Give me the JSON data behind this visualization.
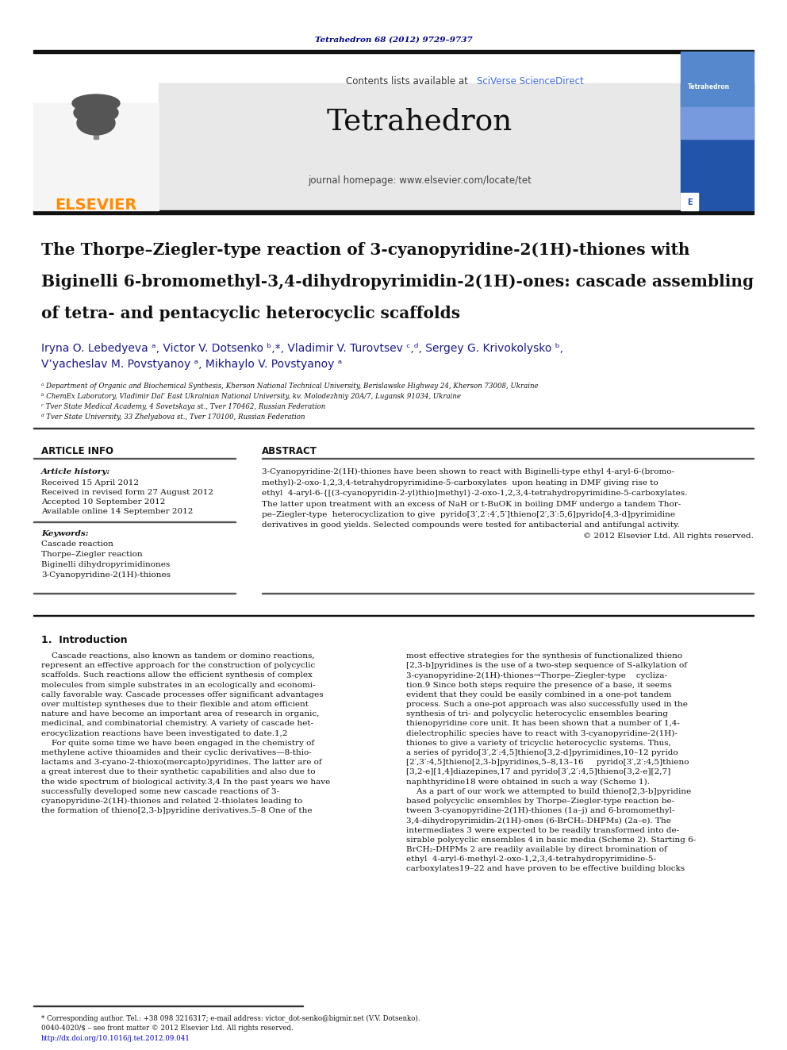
{
  "page_bg": "#ffffff",
  "journal_ref_text": "Tetrahedron 68 (2012) 9729–9737",
  "journal_ref_color": "#00008B",
  "journal_name": "Tetrahedron",
  "journal_homepage": "journal homepage: www.elsevier.com/locate/tet",
  "contents_text": "Contents lists available at ",
  "sciverse_text": "SciVerse ScienceDirect",
  "sciverse_color": "#4169E1",
  "header_bg": "#e8e8e8",
  "elsevier_color": "#FF8C00",
  "elsevier_text": "ELSEVIER",
  "article_title_line1": "The Thorpe–Ziegler-type reaction of 3-cyanopyridine-2(1H)-thiones with",
  "article_title_line2": "Biginelli 6-bromomethyl-3,4-dihydropyrimidin-2(1H)-ones: cascade assembling",
  "article_title_line3": "of tetra- and pentacyclic heterocyclic scaffolds",
  "authors_line1": "Iryna O. Lebedyeva ᵃ, Victor V. Dotsenko ᵇ,*, Vladimir V. Turovtsev ᶜ,ᵈ, Sergey G. Krivokolysko ᵇ,",
  "authors_line2": "Vʼyacheslav M. Povstyanoy ᵃ, Mikhaylo V. Povstyanoy ᵃ",
  "affil_a": "ᵃ Department of Organic and Biochemical Synthesis, Kherson National Technical University, Berislawske Highway 24, Kherson 73008, Ukraine",
  "affil_b": "ᵇ ChemEx Laboratory, Vladimir Dal’ East Ukrainian National University, kv. Molodezhniy 20A/7, Lugansk 91034, Ukraine",
  "affil_c": "ᶜ Tver State Medical Academy, 4 Sovetskaya st., Tver 170462, Russian Federation",
  "affil_d": "ᵈ Tver State University, 33 Zhelyabova st., Tver 170100, Russian Federation",
  "article_info_title": "ARTICLE INFO",
  "abstract_title": "ABSTRACT",
  "article_history_label": "Article history:",
  "received_text": "Received 15 April 2012",
  "revised_text": "Received in revised form 27 August 2012",
  "accepted_text": "Accepted 10 September 2012",
  "available_text": "Available online 14 September 2012",
  "keywords_label": "Keywords:",
  "keyword1": "Cascade reaction",
  "keyword2": "Thorpe–Ziegler reaction",
  "keyword3": "Biginelli dihydropyrimidinones",
  "keyword4": "3-Cyanopyridine-2(1H)-thiones",
  "abstract_line1": "3-Cyanopyridine-2(1H)-thiones have been shown to react with Biginelli-type ethyl 4-aryl-6-(bromo-",
  "abstract_line2": "methyl)-2-oxo-1,2,3,4-tetrahydropyrimidine-5-carboxylates  upon heating in DMF giving rise to",
  "abstract_line3": "ethyl  4-aryl-6-{[(3-cyanopyridin-2-yl)thio]methyl}-2-oxo-1,2,3,4-tetrahydropyrimidine-5-carboxylates.",
  "abstract_line4": "The latter upon treatment with an excess of NaH or t-BuOK in boiling DMF undergo a tandem Thor-",
  "abstract_line5": "pe–Ziegler-type  heterocyclization to give  pyrido[3′,2′:4′,5′]thieno[2′,3′:5,6]pyrido[4,3-d]pyrimidine",
  "abstract_line6": "derivatives in good yields. Selected compounds were tested for antibacterial and antifungal activity.",
  "abstract_line7": "© 2012 Elsevier Ltd. All rights reserved.",
  "intro_title": "1.  Introduction",
  "col1_lines": [
    "    Cascade reactions, also known as tandem or domino reactions,",
    "represent an effective approach for the construction of polycyclic",
    "scaffolds. Such reactions allow the efficient synthesis of complex",
    "molecules from simple substrates in an ecologically and economi-",
    "cally favorable way. Cascade processes offer significant advantages",
    "over multistep syntheses due to their flexible and atom efficient",
    "nature and have become an important area of research in organic,",
    "medicinal, and combinatorial chemistry. A variety of cascade het-",
    "erocyclization reactions have been investigated to date.1,2",
    "    For quite some time we have been engaged in the chemistry of",
    "methylene active thioamides and their cyclic derivatives—8-thio-",
    "lactams and 3-cyano-2-thioxo(mercapto)pyridines. The latter are of",
    "a great interest due to their synthetic capabilities and also due to",
    "the wide spectrum of biological activity.3,4 In the past years we have",
    "successfully developed some new cascade reactions of 3-",
    "cyanopyridine-2(1H)-thiones and related 2-thiolates leading to",
    "the formation of thieno[2,3-b]pyridine derivatives.5–8 One of the"
  ],
  "col2_lines": [
    "most effective strategies for the synthesis of functionalized thieno",
    "[2,3-b]pyridines is the use of a two-step sequence of S-alkylation of",
    "3-cyanopyridine-2(1H)-thiones→Thorpe–Ziegler-type    cycliza-",
    "tion.9 Since both steps require the presence of a base, it seems",
    "evident that they could be easily combined in a one-pot tandem",
    "process. Such a one-pot approach was also successfully used in the",
    "synthesis of tri- and polycyclic heterocyclic ensembles bearing",
    "thienopyridine core unit. It has been shown that a number of 1,4-",
    "dielectrophilic species have to react with 3-cyanopyridine-2(1H)-",
    "thiones to give a variety of tricyclic heterocyclic systems. Thus,",
    "a series of pyrido[3′,2′:4,5]thieno[3,2-d]pyrimidines,10–12 pyrido",
    "[2′,3′:4,5]thieno[2,3-b]pyridines,5–8,13–16     pyrido[3′,2′:4,5]thieno",
    "[3,2-e][1,4]diazepines,17 and pyrido[3′,2′:4,5]thieno[3,2-e][2,7]",
    "naphthyridine18 were obtained in such a way (Scheme 1).",
    "    As a part of our work we attempted to build thieno[2,3-b]pyridine",
    "based polycyclic ensembles by Thorpe–Ziegler-type reaction be-",
    "tween 3-cyanopyridine-2(1H)-thiones (1a–j) and 6-bromomethyl-",
    "3,4-dihydropyrimidin-2(1H)-ones (6-BrCH₂-DHPMs) (2a–e). The",
    "intermediates 3 were expected to be readily transformed into de-",
    "sirable polycyclic ensembles 4 in basic media (Scheme 2). Starting 6-",
    "BrCH₂-DHPMs 2 are readily available by direct bromination of",
    "ethyl  4-aryl-6-methyl-2-oxo-1,2,3,4-tetrahydropyrimidine-5-",
    "carboxylates19–22 and have proven to be effective building blocks"
  ],
  "footnote1": "* Corresponding author. Tel.: +38 098 3216317; e-mail address: victor_dot-senko@bigmir.net (V.V. Dotsenko).",
  "footnote2": "0040-4020/$ – see front matter © 2012 Elsevier Ltd. All rights reserved.",
  "footnote_doi": "http://dx.doi.org/10.1016/j.tet.2012.09.041"
}
